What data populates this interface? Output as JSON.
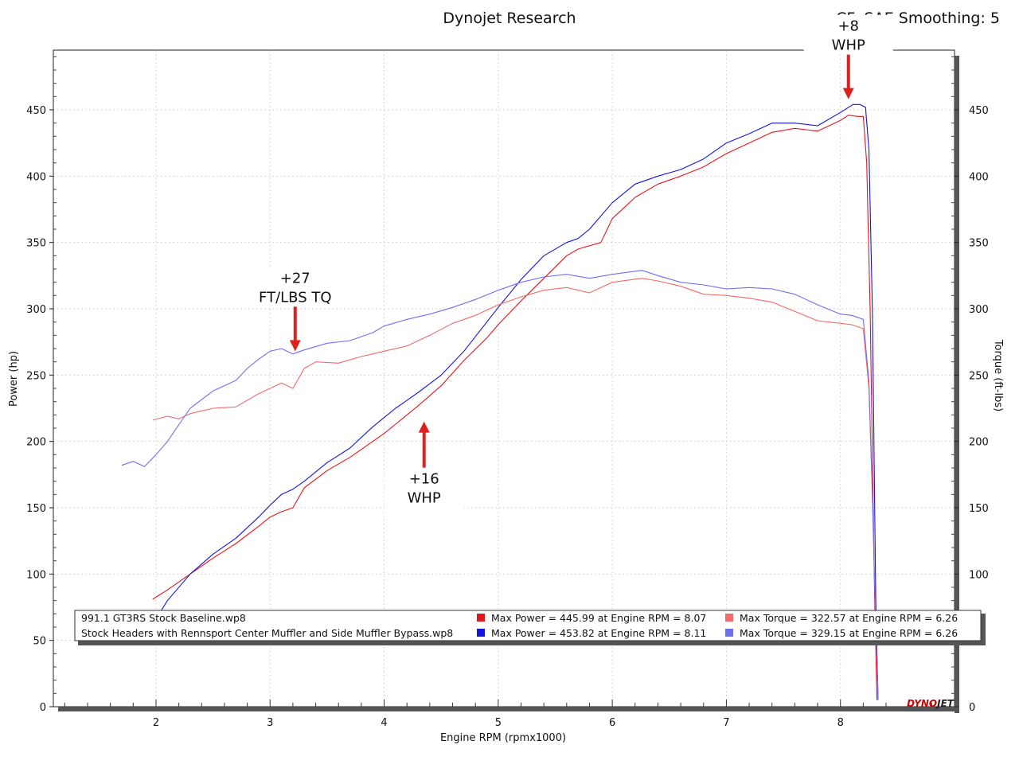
{
  "header": {
    "title": "Dynojet Research",
    "correction": "CF: SAE Smoothing: 5"
  },
  "logo": {
    "text": "DYNOJET",
    "text_a": "DYNO",
    "text_b": "JET",
    "color": "#d10000"
  },
  "chart_data": {
    "type": "line",
    "title": "Dynojet Research",
    "xlabel": "Engine RPM (rpmx1000)",
    "ylabel": "Power (hp)",
    "y2label": "Torque (ft-lbs)",
    "xlim": [
      1.1,
      9.0
    ],
    "ylim": [
      0,
      495
    ],
    "y2lim": [
      0,
      495
    ],
    "x_ticks": [
      2,
      3,
      4,
      5,
      6,
      7,
      8
    ],
    "y_ticks": [
      0,
      50,
      100,
      150,
      200,
      250,
      300,
      350,
      400,
      450
    ],
    "grid": true,
    "legend_position": "bottom",
    "series": [
      {
        "run": "991.1 GT3RS Stock Baseline.wp8",
        "quantity": "Power",
        "axis": "left",
        "color": "#e5161a",
        "x": [
          1.97,
          2.1,
          2.3,
          2.5,
          2.7,
          2.9,
          3.0,
          3.1,
          3.2,
          3.3,
          3.5,
          3.7,
          3.9,
          4.0,
          4.1,
          4.3,
          4.5,
          4.7,
          4.9,
          5.0,
          5.2,
          5.4,
          5.6,
          5.7,
          5.9,
          6.0,
          6.2,
          6.4,
          6.6,
          6.8,
          7.0,
          7.2,
          7.4,
          7.6,
          7.8,
          8.0,
          8.07,
          8.15,
          8.2,
          8.23,
          8.26,
          8.3,
          8.32
        ],
        "y": [
          81,
          88,
          100,
          112,
          123,
          136,
          143,
          147,
          150,
          165,
          178,
          188,
          200,
          206,
          213,
          227,
          242,
          261,
          278,
          288,
          306,
          323,
          340,
          345,
          350,
          368,
          384,
          394,
          400,
          407,
          417,
          425,
          433,
          436,
          434,
          442,
          446,
          445,
          445,
          410,
          300,
          80,
          5
        ]
      },
      {
        "run": "Stock Headers with Rennsport Center Muffler and Side Muffler Bypass.wp8",
        "quantity": "Power",
        "axis": "left",
        "color": "#1414e0",
        "x": [
          1.97,
          2.1,
          2.3,
          2.5,
          2.7,
          2.9,
          3.0,
          3.1,
          3.2,
          3.3,
          3.5,
          3.7,
          3.9,
          4.0,
          4.1,
          4.3,
          4.5,
          4.7,
          4.9,
          5.0,
          5.2,
          5.4,
          5.6,
          5.7,
          5.8,
          6.0,
          6.2,
          6.4,
          6.6,
          6.8,
          7.0,
          7.2,
          7.4,
          7.6,
          7.8,
          8.0,
          8.11,
          8.17,
          8.22,
          8.25,
          8.28,
          8.31,
          8.33
        ],
        "y": [
          62,
          80,
          100,
          115,
          127,
          143,
          152,
          160,
          164,
          170,
          184,
          195,
          211,
          218,
          225,
          237,
          250,
          268,
          290,
          301,
          322,
          340,
          350,
          353,
          360,
          380,
          394,
          400,
          405,
          413,
          425,
          432,
          440,
          440,
          438,
          448,
          454,
          454,
          452,
          420,
          300,
          80,
          5
        ]
      },
      {
        "run": "991.1 GT3RS Stock Baseline.wp8",
        "quantity": "Torque",
        "axis": "right",
        "color": "#f26a6a",
        "x": [
          1.97,
          2.1,
          2.2,
          2.3,
          2.5,
          2.7,
          2.9,
          3.0,
          3.1,
          3.2,
          3.3,
          3.4,
          3.6,
          3.8,
          3.9,
          4.0,
          4.2,
          4.4,
          4.6,
          4.8,
          5.0,
          5.2,
          5.4,
          5.6,
          5.8,
          6.0,
          6.26,
          6.4,
          6.6,
          6.8,
          7.0,
          7.2,
          7.4,
          7.6,
          7.8,
          8.0,
          8.1,
          8.2,
          8.25,
          8.28,
          8.31,
          8.33
        ],
        "y": [
          216,
          219,
          217,
          221,
          225,
          226,
          236,
          240,
          244,
          240,
          255,
          260,
          259,
          264,
          266,
          268,
          272,
          280,
          289,
          295,
          303,
          309,
          314,
          316,
          312,
          320,
          323,
          321,
          317,
          311,
          310,
          308,
          305,
          298,
          291,
          289,
          288,
          285,
          240,
          160,
          60,
          5
        ]
      },
      {
        "run": "Stock Headers with Rennsport Center Muffler and Side Muffler Bypass.wp8",
        "quantity": "Torque",
        "axis": "right",
        "color": "#6e6ef2",
        "x": [
          1.7,
          1.8,
          1.9,
          2.0,
          2.1,
          2.3,
          2.5,
          2.7,
          2.8,
          2.9,
          3.0,
          3.1,
          3.2,
          3.3,
          3.5,
          3.7,
          3.9,
          4.0,
          4.2,
          4.4,
          4.6,
          4.8,
          5.0,
          5.2,
          5.4,
          5.6,
          5.8,
          6.0,
          6.26,
          6.4,
          6.6,
          6.8,
          7.0,
          7.2,
          7.4,
          7.6,
          7.8,
          8.0,
          8.1,
          8.2,
          8.25,
          8.28,
          8.31,
          8.33
        ],
        "y": [
          182,
          185,
          181,
          190,
          200,
          225,
          238,
          246,
          255,
          262,
          268,
          270,
          266,
          269,
          274,
          276,
          282,
          287,
          292,
          296,
          301,
          307,
          314,
          320,
          324,
          326,
          323,
          326,
          329,
          325,
          320,
          318,
          315,
          316,
          315,
          311,
          303,
          296,
          295,
          292,
          245,
          160,
          60,
          5
        ]
      }
    ],
    "legend": [
      {
        "run": "991.1 GT3RS Stock Baseline.wp8",
        "power_text": "Max Power = 445.99 at Engine RPM = 8.07",
        "torque_text": "Max Torque = 322.57 at Engine RPM = 6.26",
        "power_color": "#e5161a",
        "torque_color": "#f26a6a"
      },
      {
        "run": "Stock Headers with Rennsport Center Muffler and Side Muffler Bypass.wp8",
        "power_text": "Max Power = 453.82 at Engine RPM = 8.11",
        "torque_text": "Max Torque = 329.15 at Engine RPM = 6.26",
        "power_color": "#1414e0",
        "torque_color": "#6e6ef2"
      }
    ],
    "annotations": [
      {
        "lines": [
          "+27",
          "FT/LBS TQ"
        ],
        "at_x": 3.22,
        "at_y": 268,
        "arrow": "down"
      },
      {
        "lines": [
          "+16",
          "WHP"
        ],
        "at_x": 4.35,
        "at_y": 215,
        "arrow": "up"
      },
      {
        "lines": [
          "+8",
          "WHP"
        ],
        "at_x": 8.07,
        "at_y": 458,
        "arrow": "down"
      }
    ],
    "annotation_color": "#e0201e"
  }
}
